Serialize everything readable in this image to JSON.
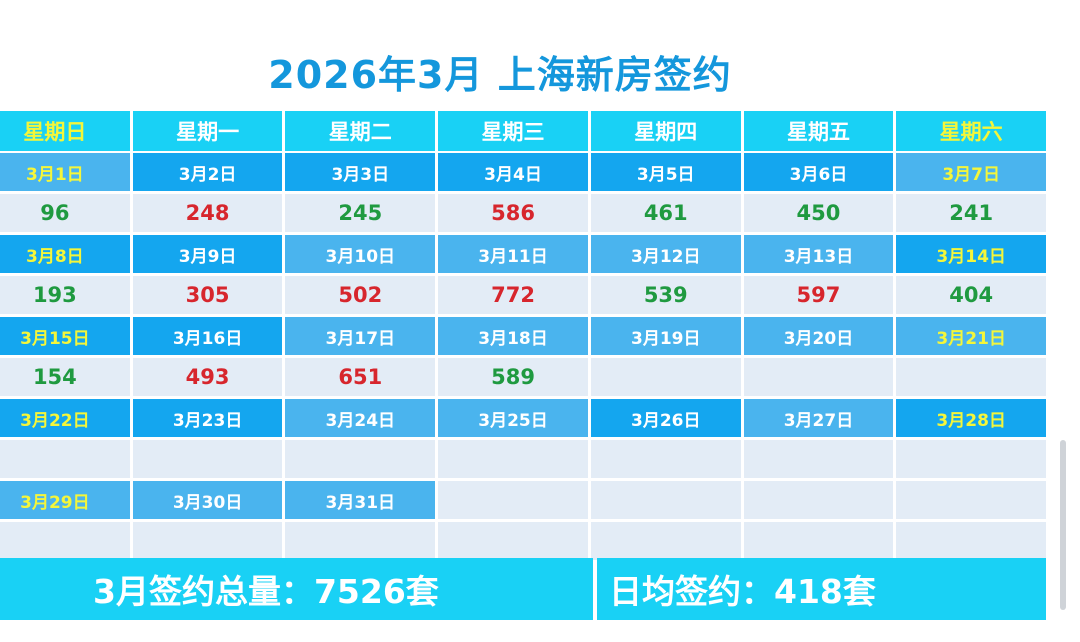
{
  "title": "2026年3月 上海新房签约",
  "weekdays": [
    "星期日",
    "星期一",
    "星期二",
    "星期三",
    "星期四",
    "星期五",
    "星期六"
  ],
  "weeks": [
    {
      "dates": [
        "3月1日",
        "3月2日",
        "3月3日",
        "3月4日",
        "3月5日",
        "3月6日",
        "3月7日"
      ],
      "values": [
        "96",
        "248",
        "245",
        "586",
        "461",
        "450",
        "241"
      ]
    },
    {
      "dates": [
        "3月8日",
        "3月9日",
        "3月10日",
        "3月11日",
        "3月12日",
        "3月13日",
        "3月14日"
      ],
      "values": [
        "193",
        "305",
        "502",
        "772",
        "539",
        "597",
        "404"
      ]
    },
    {
      "dates": [
        "3月15日",
        "3月16日",
        "3月17日",
        "3月18日",
        "3月19日",
        "3月20日",
        "3月21日"
      ],
      "values": [
        "154",
        "493",
        "651",
        "589",
        "",
        "",
        ""
      ]
    },
    {
      "dates": [
        "3月22日",
        "3月23日",
        "3月24日",
        "3月25日",
        "3月26日",
        "3月27日",
        "3月28日"
      ],
      "values": [
        "",
        "",
        "",
        "",
        "",
        "",
        ""
      ]
    },
    {
      "dates": [
        "3月29日",
        "3月30日",
        "3月31日",
        "",
        "",
        "",
        ""
      ],
      "values": [
        "",
        "",
        "",
        "",
        "",
        "",
        ""
      ]
    }
  ],
  "footer": {
    "total": "3月签约总量：7526套",
    "daily_avg": "日均签约：418套"
  },
  "colors": {
    "title": "#1497dc",
    "header_bg": "#19d1f5",
    "date_bg": "#14a6ef",
    "weekend_text": "#f4f63a",
    "value_up_green": "#1f9a40",
    "value_red": "#d7262d",
    "value_bg": "#e3ecf6"
  }
}
